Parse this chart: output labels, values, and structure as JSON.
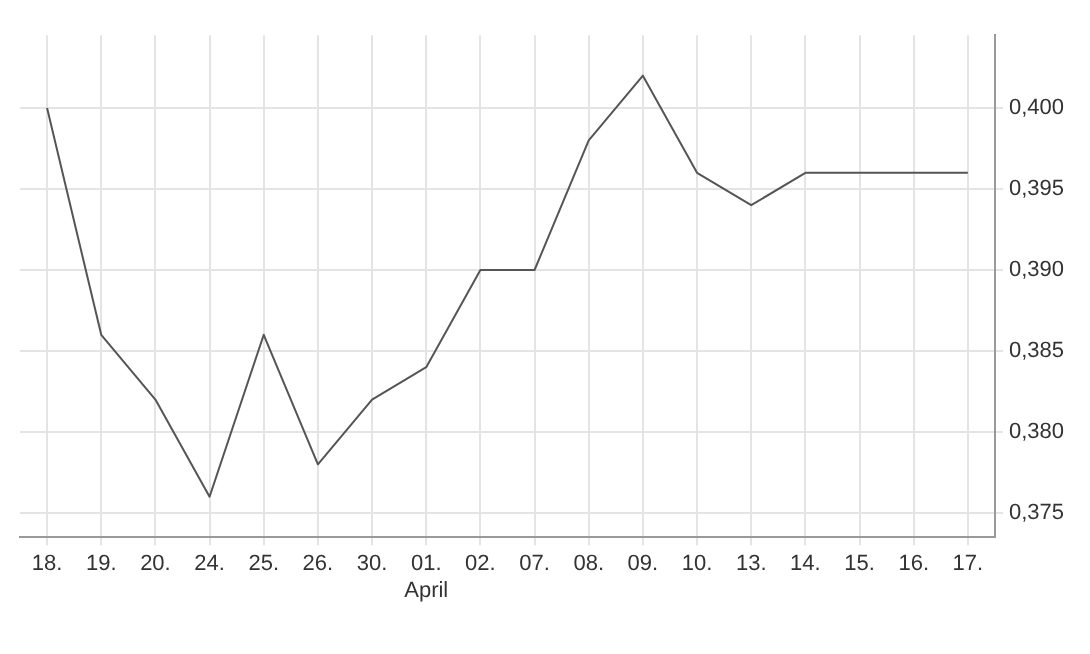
{
  "chart_data": {
    "type": "line",
    "categories": [
      "18.",
      "19.",
      "20.",
      "24.",
      "25.",
      "26.",
      "30.",
      "01.\nApril",
      "02.",
      "07.",
      "08.",
      "09.",
      "10.",
      "13.",
      "14.",
      "15.",
      "16.",
      "17."
    ],
    "series": [
      {
        "color": "#555555",
        "values": [
          0.4,
          0.386,
          0.382,
          0.376,
          0.386,
          0.378,
          0.382,
          0.384,
          0.39,
          0.39,
          0.398,
          0.402,
          0.396,
          0.394,
          0.396,
          0.396,
          0.396,
          0.396
        ]
      }
    ],
    "ylim": [
      0.3735,
      0.4045
    ],
    "yticks": [
      {
        "value": 0.375,
        "label": "0,375"
      },
      {
        "value": 0.38,
        "label": "0,380"
      },
      {
        "value": 0.385,
        "label": "0,385"
      },
      {
        "value": 0.39,
        "label": "0,390"
      },
      {
        "value": 0.395,
        "label": "0,395"
      },
      {
        "value": 0.4,
        "label": "0,400"
      }
    ],
    "grid": true,
    "legend": false,
    "marker": "none",
    "line_style": "solid"
  }
}
